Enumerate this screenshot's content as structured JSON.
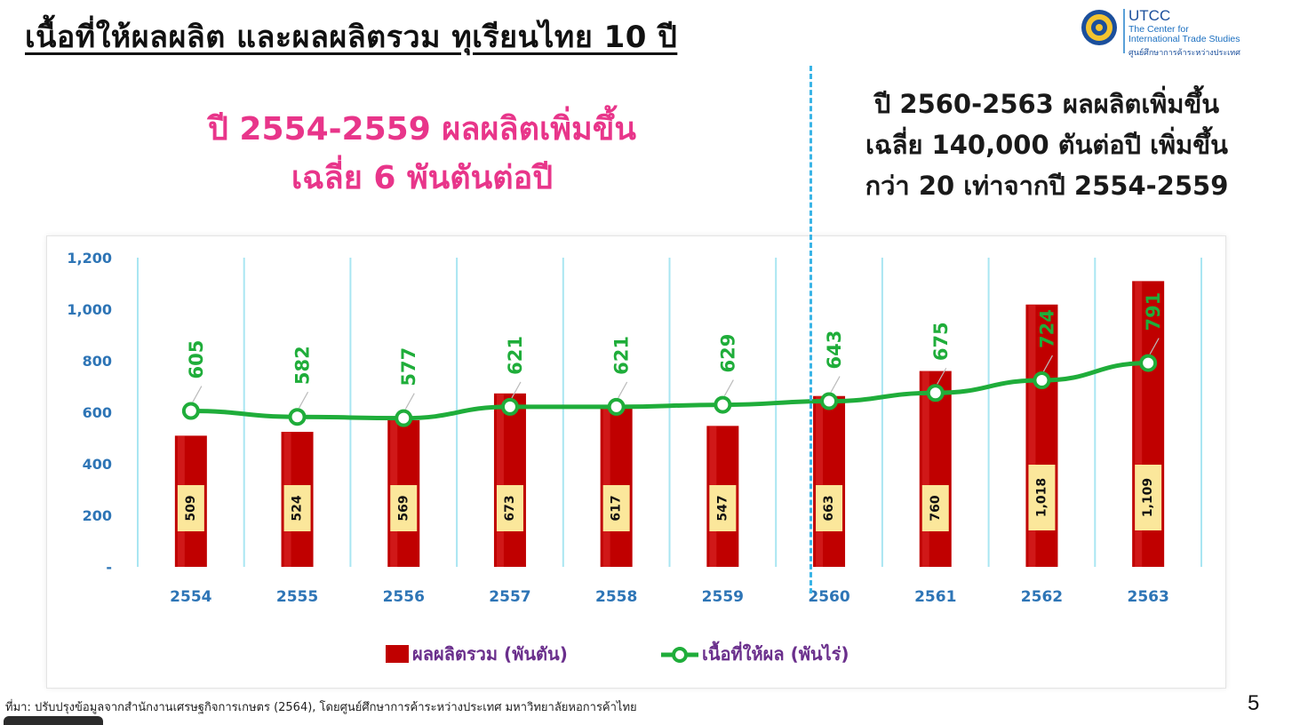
{
  "title": "เนื้อที่ให้ผลผลิต และผลผลิตรวม ทุเรียนไทย 10 ปี",
  "logo": {
    "name": "UTCC",
    "subtitle_line1": "The Center for",
    "subtitle_line2": "International Trade Studies",
    "thai": "ศูนย์ศึกษาการค้าระหว่างประเทศ"
  },
  "annotation_left": [
    "ปี 2554-2559 ผลผลิตเพิ่มขึ้น",
    "เฉลี่ย 6 พันตันต่อปี"
  ],
  "annotation_right": [
    "ปี 2560-2563 ผลผลิตเพิ่มขึ้น",
    "เฉลี่ย 140,000 ตันต่อปี เพิ่มขึ้น",
    "กว่า 20 เท่าจากปี 2554-2559"
  ],
  "source": "ที่มา: ปรับปรุงข้อมูลจากสำนักงานเศรษฐกิจการเกษตร (2564), โดยศูนย์ศึกษาการค้าระหว่างประเทศ มหาวิทยาลัยหอการค้าไทย",
  "page_number": "5",
  "colors": {
    "bar": "#c00000",
    "line": "#1fad3a",
    "label_box": "#fbe79b",
    "grid": "#a9e6f2",
    "axis_text": "#2e75b6",
    "left_note": "#e8358a"
  },
  "chart_data": {
    "type": "bar+line",
    "categories": [
      "2554",
      "2555",
      "2556",
      "2557",
      "2558",
      "2559",
      "2560",
      "2561",
      "2562",
      "2563"
    ],
    "series": [
      {
        "name": "ผลผลิตรวม (พันตัน)",
        "type": "bar",
        "values": [
          509,
          524,
          569,
          673,
          617,
          547,
          663,
          760,
          1018,
          1109
        ],
        "labels": [
          "509",
          "524",
          "569",
          "673",
          "617",
          "547",
          "663",
          "760",
          "1,018",
          "1,109"
        ]
      },
      {
        "name": "เนื้อที่ให้ผล (พันไร่)",
        "type": "line",
        "values": [
          605,
          582,
          577,
          621,
          621,
          629,
          643,
          675,
          724,
          791
        ],
        "labels": [
          "605",
          "582",
          "577",
          "621",
          "621",
          "629",
          "643",
          "675",
          "724",
          "791"
        ]
      }
    ],
    "ylim": [
      0,
      1200
    ],
    "yticks": [
      0,
      200,
      400,
      600,
      800,
      1000,
      1200
    ],
    "ytick_labels": [
      "-",
      "200",
      "400",
      "600",
      "800",
      "1,000",
      "1,200"
    ],
    "grid": "vertical",
    "legend_position": "bottom"
  }
}
